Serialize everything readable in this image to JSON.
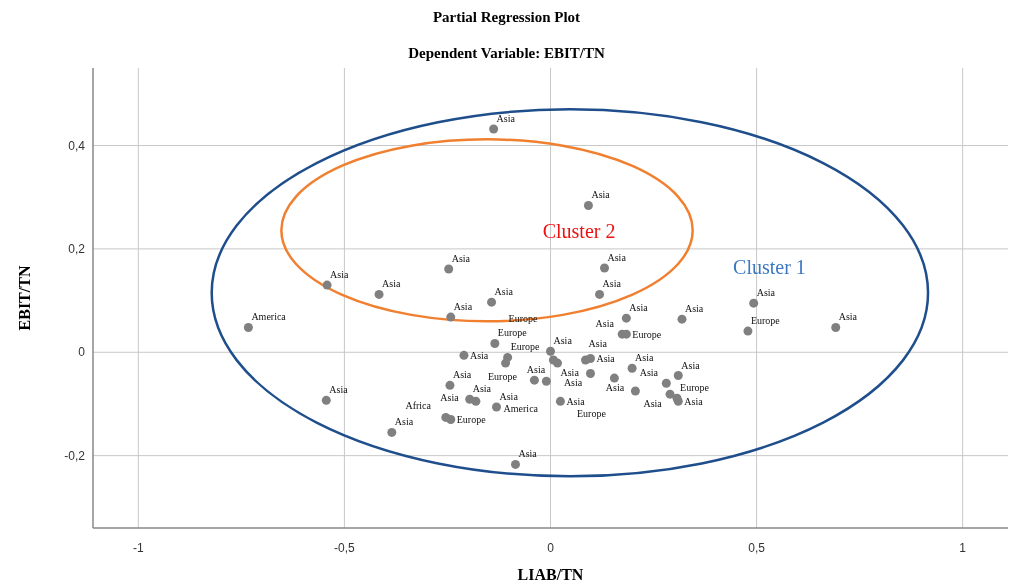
{
  "chart_data": {
    "type": "scatter",
    "title": "Partial Regression Plot",
    "subtitle": "Dependent Variable: EBIT/TN",
    "xlabel": "LIAB/TN",
    "ylabel": "EBIT/TN",
    "xlim": [
      -1.11,
      1.11
    ],
    "ylim": [
      -0.34,
      0.55
    ],
    "xticks": [
      {
        "value": -1,
        "label": "-1"
      },
      {
        "value": -0.5,
        "label": "-0,5"
      },
      0,
      {
        "value": 0.5,
        "label": "0,5"
      },
      1
    ],
    "yticks": [
      {
        "value": -0.2,
        "label": "-0,2"
      },
      0,
      {
        "value": 0.2,
        "label": "0,2"
      },
      {
        "value": 0.4,
        "label": "0,4"
      }
    ],
    "grid": true,
    "legend": false,
    "marker": "circle",
    "annotations": [
      "Cluster 1",
      "Cluster 2"
    ],
    "series": [
      {
        "name": "Asia",
        "color": "#808080",
        "x": [
          -0.138,
          0.092,
          -0.247,
          0.131,
          -0.542,
          -0.416,
          -0.143,
          0.119,
          -0.242,
          0.184,
          0.319,
          0.493,
          0.692,
          0.174,
          -0.21,
          0,
          0.007,
          0.017,
          0.085,
          0.097,
          0.097,
          0.198,
          0.206,
          0.31,
          0.281,
          0.29,
          0.31,
          0.024,
          -0.244,
          -0.196,
          -0.181,
          -0.131,
          -0.085,
          -0.544,
          -0.385
        ],
        "values": [
          0.432,
          0.284,
          0.161,
          0.163,
          0.13,
          0.112,
          0.097,
          0.112,
          0.068,
          0.066,
          0.064,
          0.095,
          0.048,
          0.035,
          -0.006,
          0.002,
          -0.015,
          -0.021,
          -0.015,
          -0.012,
          -0.041,
          -0.031,
          -0.075,
          -0.045,
          -0.06,
          -0.081,
          -0.095,
          -0.095,
          -0.064,
          -0.091,
          -0.095,
          -0.106,
          -0.217,
          -0.093,
          -0.155
        ]
      },
      {
        "name": "Europe",
        "color": "#808080",
        "x": [
          0.479,
          0.184,
          -0.135,
          -0.104,
          -0.109,
          -0.039,
          0.155,
          0.307,
          -0.242
        ],
        "values": [
          0.041,
          0.035,
          0.017,
          -0.01,
          -0.021,
          -0.054,
          -0.05,
          -0.089,
          -0.13
        ]
      },
      {
        "name": "America",
        "color": "#808080",
        "x": [
          -0.733,
          -0.01
        ],
        "values": [
          0.048,
          -0.056
        ]
      },
      {
        "name": "Africa",
        "color": "#808080",
        "x": [
          -0.254
        ],
        "values": [
          -0.126
        ]
      }
    ]
  }
}
